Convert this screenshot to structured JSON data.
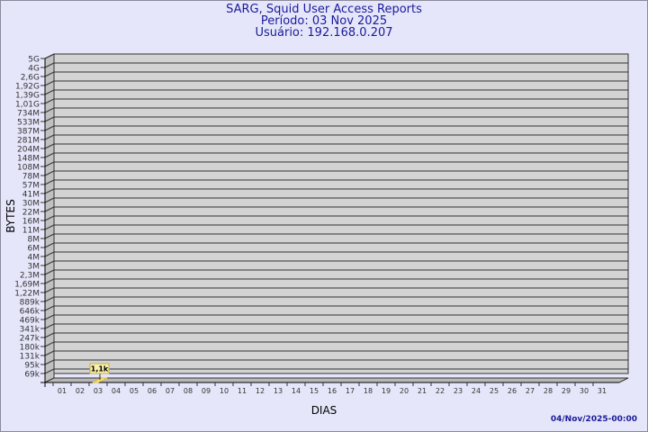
{
  "title": "SARG, Squid User Access Reports",
  "period": "Período: 03 Nov 2025",
  "user": "Usuário: 192.168.0.207",
  "footer": "04/Nov/2025-00:00",
  "colors": {
    "background": "#e6e6fa",
    "title": "#1a1a9a",
    "bar": "#ffe680",
    "wall": "#d3d3d3"
  },
  "chart_data": {
    "type": "bar",
    "xlabel": "DIAS",
    "ylabel": "BYTES",
    "y_scale": "log",
    "y_ticks": [
      "5G",
      "4G",
      "2,6G",
      "1,92G",
      "1,39G",
      "1,01G",
      "734M",
      "533M",
      "387M",
      "281M",
      "204M",
      "148M",
      "108M",
      "78M",
      "57M",
      "41M",
      "30M",
      "22M",
      "16M",
      "11M",
      "8M",
      "6M",
      "4M",
      "3M",
      "2,3M",
      "1,69M",
      "1,22M",
      "889k",
      "646k",
      "469k",
      "341k",
      "247k",
      "180k",
      "131k",
      "95k",
      "69k"
    ],
    "categories": [
      "01",
      "02",
      "03",
      "04",
      "05",
      "06",
      "07",
      "08",
      "09",
      "10",
      "11",
      "12",
      "13",
      "14",
      "15",
      "16",
      "17",
      "18",
      "19",
      "20",
      "21",
      "22",
      "23",
      "24",
      "25",
      "26",
      "27",
      "28",
      "29",
      "30",
      "31"
    ],
    "values": [
      null,
      null,
      1100,
      null,
      null,
      null,
      null,
      null,
      null,
      null,
      null,
      null,
      null,
      null,
      null,
      null,
      null,
      null,
      null,
      null,
      null,
      null,
      null,
      null,
      null,
      null,
      null,
      null,
      null,
      null,
      null
    ],
    "data_labels": {
      "03": "1,1k"
    },
    "grid": true
  }
}
